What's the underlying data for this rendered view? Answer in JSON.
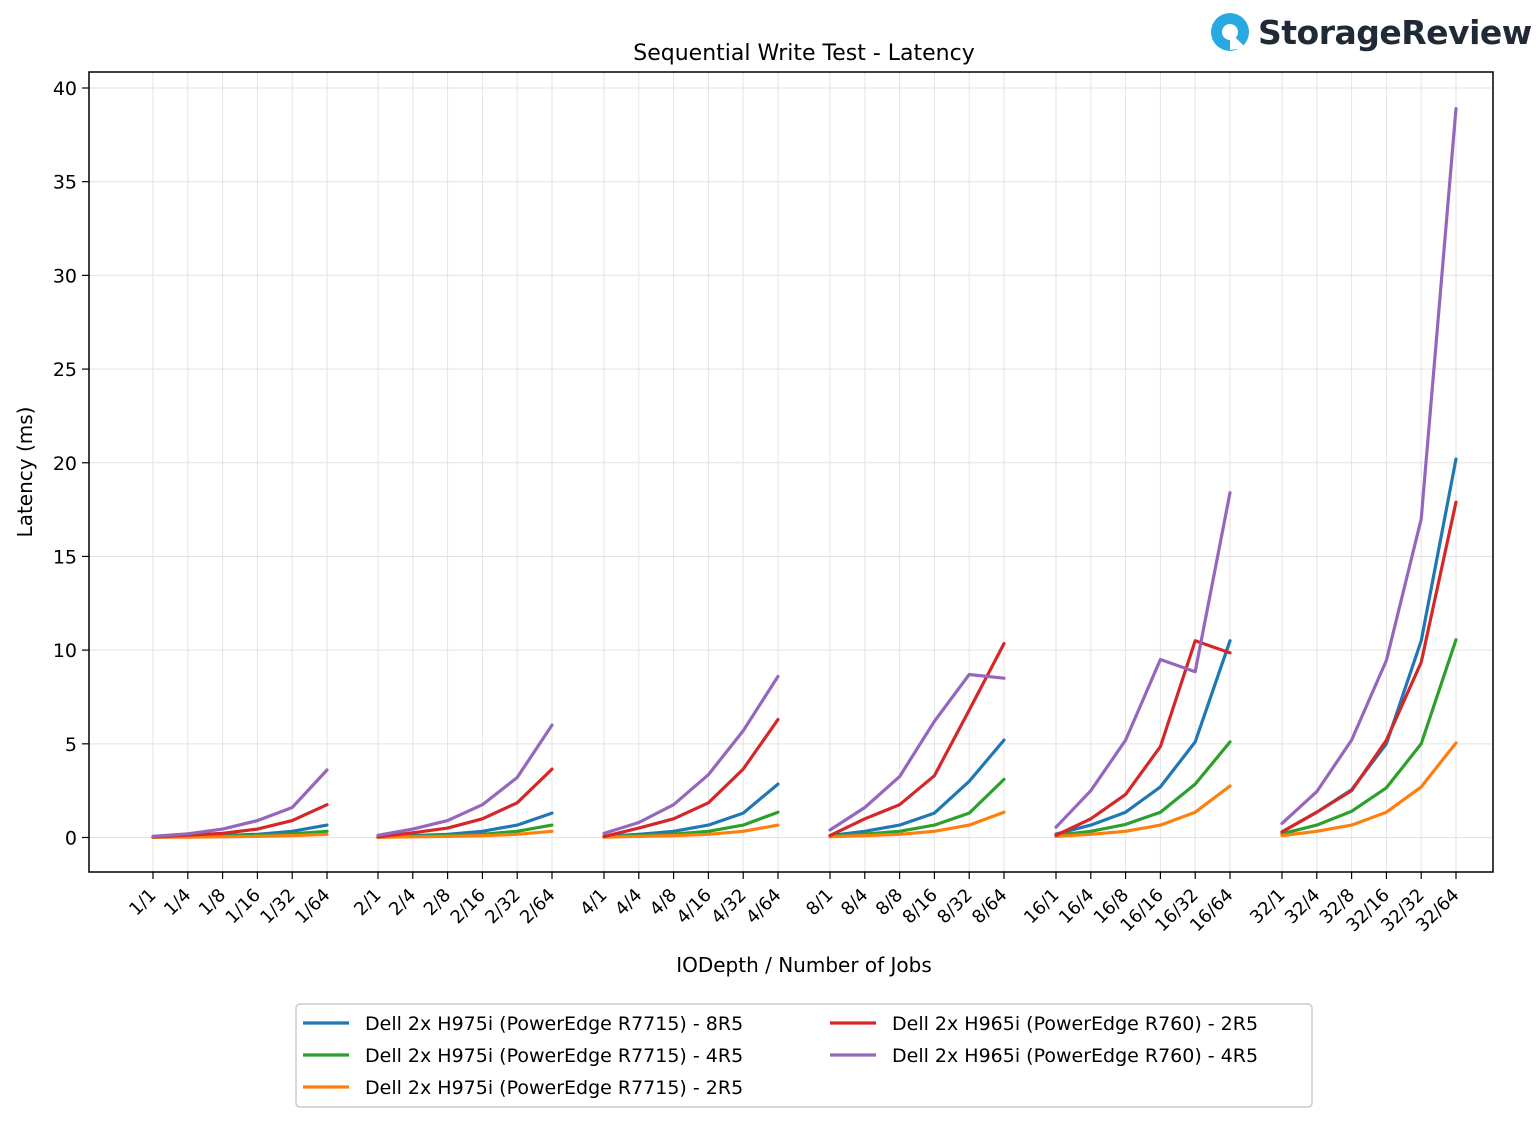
{
  "brand": {
    "name": "StorageReview",
    "icon": "storagereview-logo-icon",
    "icon_color": "#29a9e1"
  },
  "chart_data": {
    "type": "line",
    "title": "Sequential Write Test - Latency",
    "xlabel": "IODepth / Number of Jobs",
    "ylabel": "Latency (ms)",
    "ylim": [
      -1.8,
      41
    ],
    "yticks": [
      0,
      5,
      10,
      15,
      20,
      25,
      30,
      35,
      40
    ],
    "grid": true,
    "legend_position": "bottom-center",
    "groups": [
      [
        "1/1",
        "1/4",
        "1/8",
        "1/16",
        "1/32",
        "1/64"
      ],
      [
        "2/1",
        "2/4",
        "2/8",
        "2/16",
        "2/32",
        "2/64"
      ],
      [
        "4/1",
        "4/4",
        "4/8",
        "4/16",
        "4/32",
        "4/64"
      ],
      [
        "8/1",
        "8/4",
        "8/8",
        "8/16",
        "8/32",
        "8/64"
      ],
      [
        "16/1",
        "16/4",
        "16/8",
        "16/16",
        "16/32",
        "16/64"
      ],
      [
        "32/1",
        "32/4",
        "32/8",
        "32/16",
        "32/32",
        "32/64"
      ]
    ],
    "series": [
      {
        "name": "Dell 2x H975i (PowerEdge R7715) - 8R5",
        "color": "#1f77b4",
        "values": [
          [
            0.02,
            0.05,
            0.1,
            0.17,
            0.33,
            0.66
          ],
          [
            0.02,
            0.1,
            0.17,
            0.33,
            0.66,
            1.3
          ],
          [
            0.05,
            0.17,
            0.33,
            0.66,
            1.3,
            2.85
          ],
          [
            0.1,
            0.33,
            0.66,
            1.3,
            3.0,
            5.2
          ],
          [
            0.18,
            0.66,
            1.35,
            2.7,
            5.1,
            10.5
          ],
          [
            0.3,
            1.35,
            2.55,
            5.0,
            10.5,
            20.2
          ]
        ]
      },
      {
        "name": "Dell 2x H975i (PowerEdge R7715) - 4R5",
        "color": "#2ca02c",
        "values": [
          [
            0.02,
            0.04,
            0.07,
            0.12,
            0.2,
            0.33
          ],
          [
            0.02,
            0.07,
            0.1,
            0.17,
            0.33,
            0.66
          ],
          [
            0.03,
            0.1,
            0.18,
            0.33,
            0.66,
            1.35
          ],
          [
            0.08,
            0.18,
            0.33,
            0.66,
            1.3,
            3.1
          ],
          [
            0.12,
            0.33,
            0.7,
            1.35,
            2.85,
            5.1
          ],
          [
            0.2,
            0.66,
            1.4,
            2.65,
            5.0,
            10.55
          ]
        ]
      },
      {
        "name": "Dell 2x H975i (PowerEdge R7715) - 2R5",
        "color": "#ff7f0e",
        "values": [
          [
            0.01,
            0.02,
            0.04,
            0.06,
            0.1,
            0.17
          ],
          [
            0.01,
            0.04,
            0.06,
            0.1,
            0.17,
            0.33
          ],
          [
            0.02,
            0.06,
            0.1,
            0.17,
            0.33,
            0.66
          ],
          [
            0.04,
            0.1,
            0.17,
            0.33,
            0.66,
            1.35
          ],
          [
            0.06,
            0.17,
            0.33,
            0.66,
            1.35,
            2.75
          ],
          [
            0.1,
            0.33,
            0.66,
            1.35,
            2.7,
            5.05
          ]
        ]
      },
      {
        "name": "Dell 2x H965i (PowerEdge R760) - 2R5",
        "color": "#d62728",
        "values": [
          [
            0.03,
            0.13,
            0.22,
            0.45,
            0.9,
            1.75
          ],
          [
            0.03,
            0.25,
            0.5,
            1.0,
            1.85,
            3.65
          ],
          [
            0.05,
            0.5,
            1.0,
            1.85,
            3.65,
            6.3
          ],
          [
            0.1,
            1.0,
            1.75,
            3.3,
            6.8,
            10.35
          ],
          [
            0.12,
            1.0,
            2.3,
            4.85,
            10.5,
            9.85
          ],
          [
            0.3,
            1.35,
            2.5,
            5.2,
            9.35,
            17.9
          ]
        ]
      },
      {
        "name": "Dell 2x H965i (PowerEdge R760) - 4R5",
        "color": "#9467bd",
        "values": [
          [
            0.06,
            0.2,
            0.45,
            0.9,
            1.6,
            3.6
          ],
          [
            0.12,
            0.45,
            0.9,
            1.75,
            3.2,
            6.0
          ],
          [
            0.22,
            0.8,
            1.75,
            3.35,
            5.7,
            8.6
          ],
          [
            0.4,
            1.6,
            3.25,
            6.2,
            8.7,
            8.5
          ],
          [
            0.55,
            2.5,
            5.2,
            9.5,
            8.85,
            18.4
          ],
          [
            0.75,
            2.45,
            5.2,
            9.45,
            17.0,
            38.9
          ]
        ]
      }
    ]
  }
}
